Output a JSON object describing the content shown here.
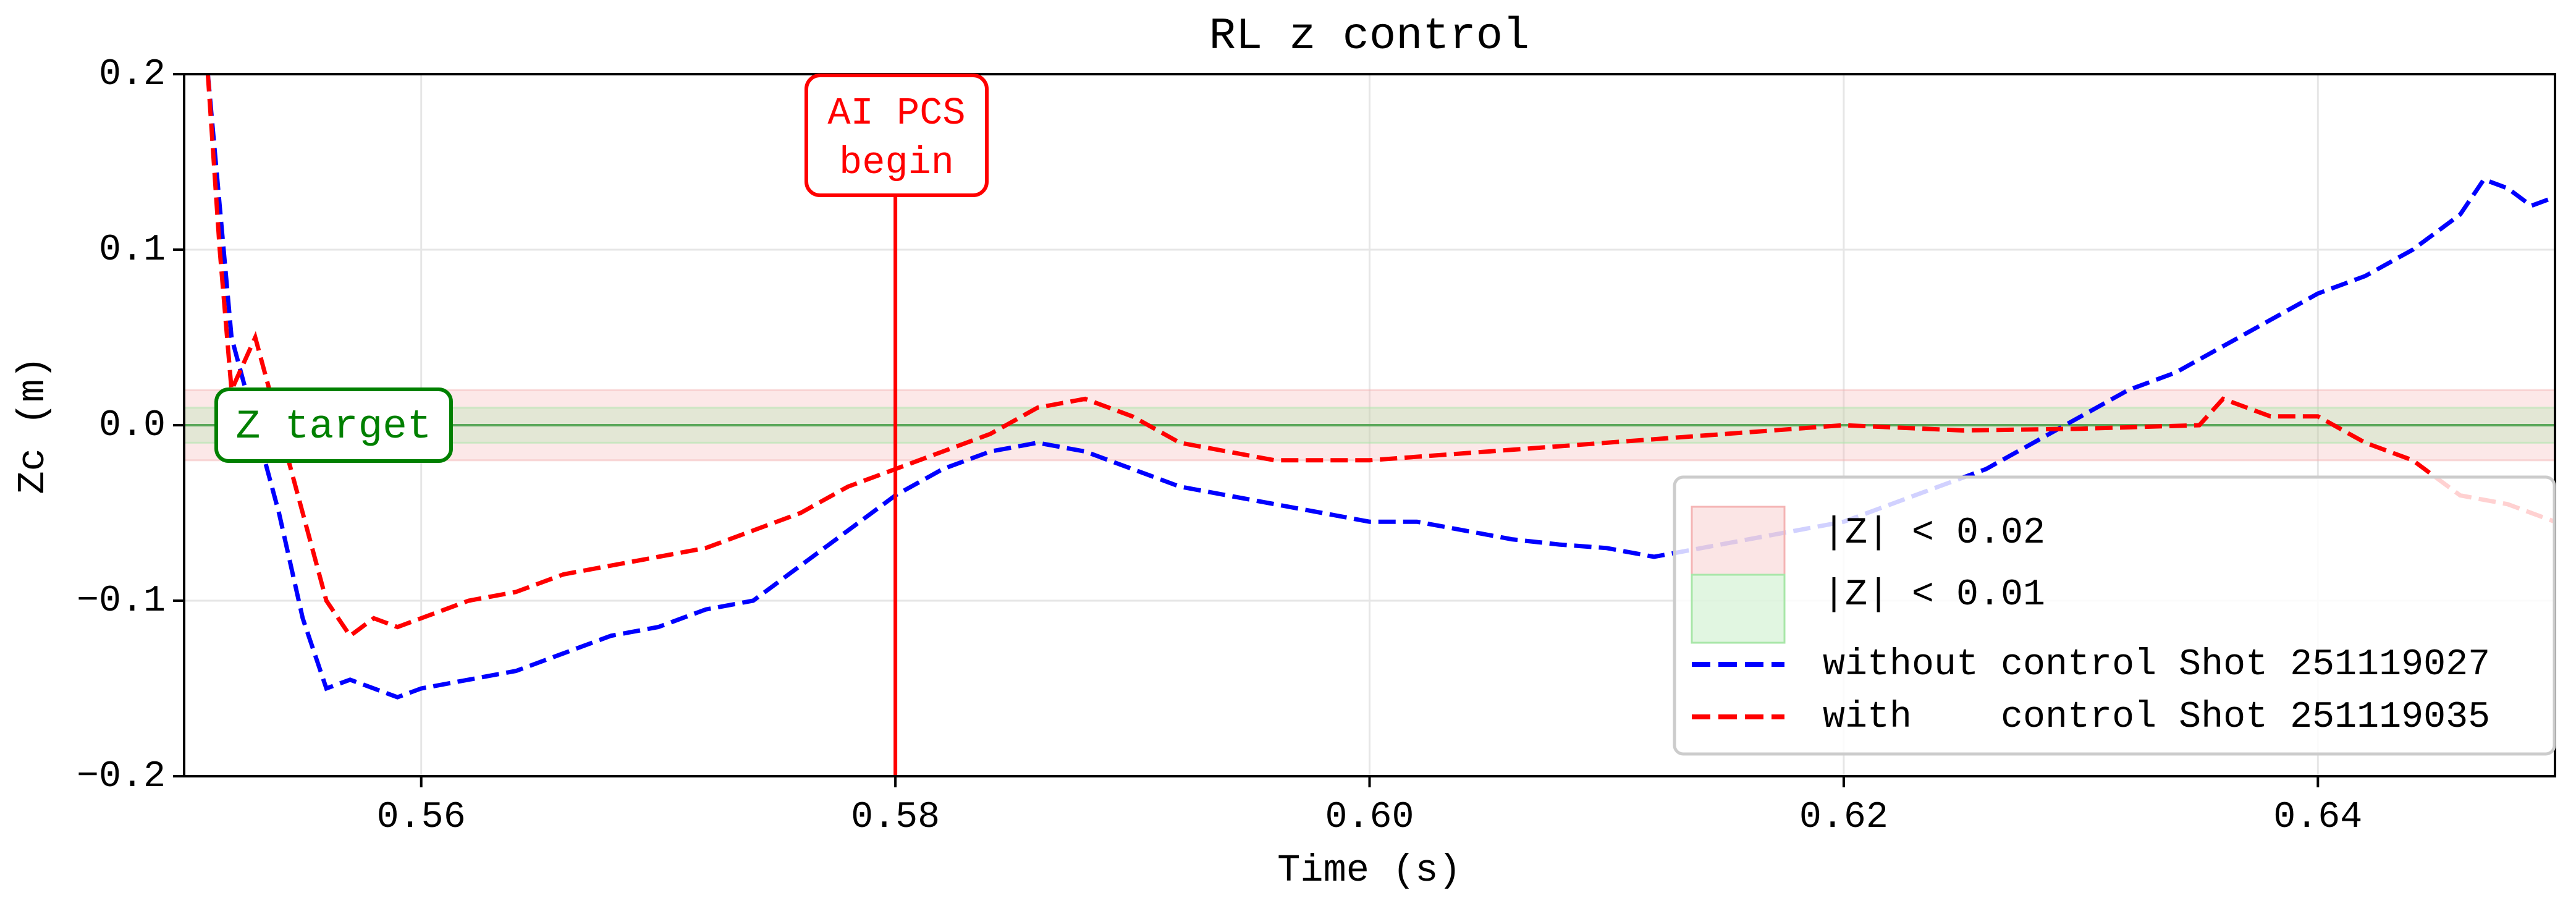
{
  "chart_data": {
    "type": "line",
    "title": "RL z control",
    "xlabel": "Time (s)",
    "ylabel": "Zc (m)",
    "xlim": [
      0.55,
      0.65
    ],
    "ylim": [
      -0.2,
      0.2
    ],
    "xticks": [
      0.56,
      0.58,
      0.6,
      0.62,
      0.64
    ],
    "xtick_labels": [
      "0.56",
      "0.58",
      "0.60",
      "0.62",
      "0.64"
    ],
    "yticks": [
      -0.2,
      -0.1,
      0.0,
      0.1,
      0.2
    ],
    "ytick_labels": [
      "−0.2",
      "−0.1",
      "0.0",
      "0.1",
      "0.2"
    ],
    "grid": true,
    "legend_placement": "lower-right",
    "bands": [
      {
        "name": "|Z| < 0.02",
        "ymin": -0.02,
        "ymax": 0.02,
        "color": "#f4b4b4"
      },
      {
        "name": "|Z| < 0.01",
        "ymin": -0.01,
        "ymax": 0.01,
        "color": "#a8e6a8"
      }
    ],
    "target_line": {
      "y": 0.0,
      "color": "#5aa85a",
      "label": "Z target",
      "label_color": "#008000"
    },
    "event_line": {
      "x": 0.58,
      "color": "#ff0000",
      "label_line1": "AI PCS",
      "label_line2": "begin"
    },
    "series": [
      {
        "name": "without control Shot 251119027",
        "color": "#0000ff",
        "style": "dashed",
        "x": [
          0.551,
          0.552,
          0.553,
          0.554,
          0.555,
          0.556,
          0.557,
          0.558,
          0.559,
          0.56,
          0.562,
          0.564,
          0.566,
          0.568,
          0.57,
          0.572,
          0.574,
          0.576,
          0.578,
          0.58,
          0.582,
          0.584,
          0.586,
          0.588,
          0.59,
          0.592,
          0.594,
          0.596,
          0.598,
          0.6,
          0.602,
          0.604,
          0.606,
          0.608,
          0.61,
          0.612,
          0.614,
          0.616,
          0.618,
          0.62,
          0.622,
          0.624,
          0.626,
          0.628,
          0.63,
          0.632,
          0.634,
          0.636,
          0.638,
          0.64,
          0.642,
          0.644,
          0.646,
          0.647,
          0.648,
          0.649,
          0.65
        ],
        "y": [
          0.2,
          0.05,
          0.0,
          -0.05,
          -0.11,
          -0.15,
          -0.145,
          -0.15,
          -0.155,
          -0.15,
          -0.145,
          -0.14,
          -0.13,
          -0.12,
          -0.115,
          -0.105,
          -0.1,
          -0.08,
          -0.06,
          -0.04,
          -0.025,
          -0.015,
          -0.01,
          -0.015,
          -0.025,
          -0.035,
          -0.04,
          -0.045,
          -0.05,
          -0.055,
          -0.055,
          -0.06,
          -0.065,
          -0.068,
          -0.07,
          -0.075,
          -0.07,
          -0.065,
          -0.06,
          -0.055,
          -0.045,
          -0.035,
          -0.025,
          -0.01,
          0.005,
          0.02,
          0.03,
          0.045,
          0.06,
          0.075,
          0.085,
          0.1,
          0.12,
          0.14,
          0.135,
          0.125,
          0.13
        ]
      },
      {
        "name": "with    control Shot 251119035",
        "color": "#ff0000",
        "style": "dashed",
        "x": [
          0.551,
          0.5515,
          0.552,
          0.553,
          0.554,
          0.555,
          0.556,
          0.557,
          0.558,
          0.559,
          0.56,
          0.562,
          0.564,
          0.566,
          0.568,
          0.57,
          0.572,
          0.574,
          0.576,
          0.578,
          0.58,
          0.582,
          0.584,
          0.586,
          0.588,
          0.59,
          0.592,
          0.594,
          0.596,
          0.6,
          0.605,
          0.61,
          0.615,
          0.62,
          0.625,
          0.63,
          0.635,
          0.636,
          0.638,
          0.64,
          0.642,
          0.644,
          0.646,
          0.648,
          0.65
        ],
        "y": [
          0.2,
          0.1,
          0.02,
          0.05,
          0.0,
          -0.05,
          -0.1,
          -0.12,
          -0.11,
          -0.115,
          -0.11,
          -0.1,
          -0.095,
          -0.085,
          -0.08,
          -0.075,
          -0.07,
          -0.06,
          -0.05,
          -0.035,
          -0.025,
          -0.015,
          -0.005,
          0.01,
          0.015,
          0.005,
          -0.01,
          -0.015,
          -0.02,
          -0.02,
          -0.015,
          -0.01,
          -0.005,
          0.0,
          -0.003,
          -0.002,
          0.0,
          0.015,
          0.005,
          0.005,
          -0.01,
          -0.02,
          -0.04,
          -0.045,
          -0.055
        ]
      }
    ]
  }
}
